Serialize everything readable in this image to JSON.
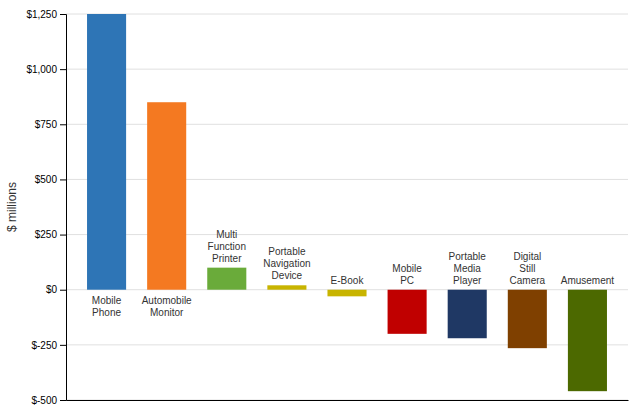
{
  "chart_data": {
    "type": "bar",
    "categories": [
      "Mobile\nPhone",
      "Automobile\nMonitor",
      "Multi\nFunction\nPrinter",
      "Portable\nNavigation\nDevice",
      "E-Book",
      "Mobile\nPC",
      "Portable\nMedia\nPlayer",
      "Digital\nStill\nCamera",
      "Amusement"
    ],
    "values": [
      1250,
      850,
      100,
      20,
      -30,
      -200,
      -220,
      -265,
      -460
    ],
    "colors": [
      "#2E75B6",
      "#F47921",
      "#6AAB3A",
      "#C8B400",
      "#C8B400",
      "#C00000",
      "#1F3864",
      "#7F4000",
      "#4C6900"
    ],
    "ylabel": "$ millions",
    "ylim": [
      -500,
      1250
    ],
    "yticks": [
      {
        "value": -500,
        "label": "$-500"
      },
      {
        "value": -250,
        "label": "$-250"
      },
      {
        "value": 0,
        "label": "$0"
      },
      {
        "value": 250,
        "label": "$250"
      },
      {
        "value": 500,
        "label": "$500"
      },
      {
        "value": 750,
        "label": "$750"
      },
      {
        "value": 1000,
        "label": "$1,000"
      },
      {
        "value": 1250,
        "label": "$1,250"
      }
    ],
    "grid": true
  }
}
